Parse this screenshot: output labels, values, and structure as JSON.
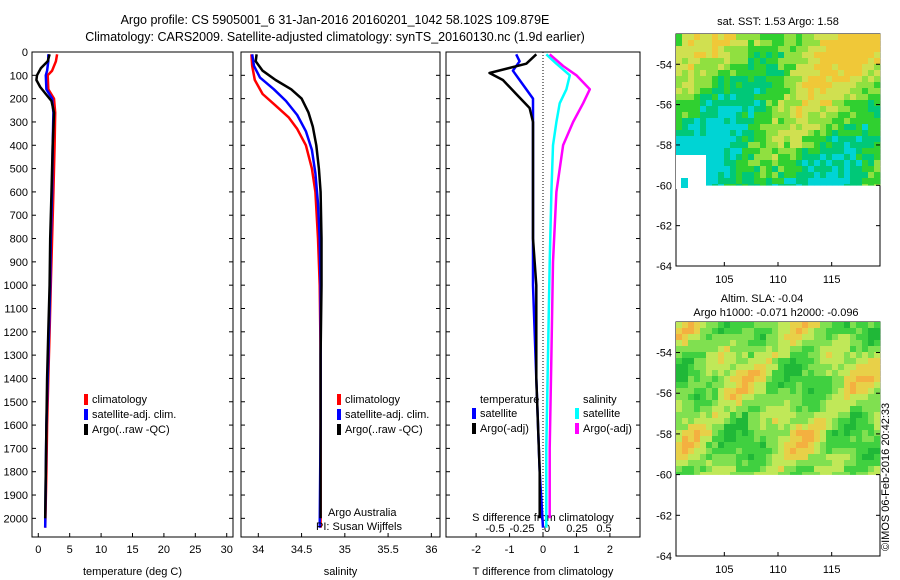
{
  "header": {
    "line1": "Argo profile: CS 5905001_6 31-Jan-2016 20160201_1042 58.102S 109.879E",
    "line2": "Climatology: CARS2009. Satellite-adjusted climatology: synTS_20160130.nc (1.9d earlier)"
  },
  "footer": {
    "credit1": "Argo Australia",
    "credit2": "PI: Susan Wijffels",
    "stamp": "©IMOS 06-Feb-2016 20:42:33"
  },
  "colors": {
    "climatology": "#ff0000",
    "satellite": "#0000ff",
    "argo": "#000000",
    "sal_satellite": "#00ffff",
    "sal_argo": "#ff00ff"
  },
  "chart_data": [
    {
      "type": "line",
      "panel": "temperature",
      "xlabel": "temperature (deg C)",
      "xlim": [
        -1,
        31
      ],
      "xticks": [
        0,
        5,
        10,
        15,
        20,
        25,
        30
      ],
      "ylim": [
        2080,
        0
      ],
      "yticks": [
        0,
        100,
        200,
        300,
        400,
        500,
        600,
        700,
        800,
        900,
        1000,
        1100,
        1200,
        1300,
        1400,
        1500,
        1600,
        1700,
        1800,
        1900,
        2000
      ],
      "legend": [
        "climatology",
        "satellite-adj. clim.",
        "Argo(..raw -QC)"
      ],
      "legend_position": "lower-center",
      "series": [
        {
          "name": "climatology",
          "color": "#ff0000",
          "points": [
            [
              3.0,
              10
            ],
            [
              2.8,
              40
            ],
            [
              2.2,
              80
            ],
            [
              1.5,
              100
            ],
            [
              1.6,
              160
            ],
            [
              2.5,
              200
            ],
            [
              2.7,
              260
            ],
            [
              2.6,
              400
            ],
            [
              2.4,
              600
            ],
            [
              2.2,
              800
            ],
            [
              2.0,
              1000
            ],
            [
              1.8,
              1200
            ],
            [
              1.6,
              1400
            ],
            [
              1.4,
              1600
            ],
            [
              1.3,
              1800
            ],
            [
              1.1,
              2040
            ]
          ]
        },
        {
          "name": "satellite-adj. clim.",
          "color": "#0000ff",
          "points": [
            [
              1.6,
              10
            ],
            [
              1.6,
              40
            ],
            [
              1.4,
              80
            ],
            [
              1.2,
              100
            ],
            [
              1.3,
              160
            ],
            [
              2.2,
              200
            ],
            [
              2.4,
              260
            ],
            [
              2.3,
              400
            ],
            [
              2.2,
              600
            ],
            [
              2.0,
              800
            ],
            [
              1.9,
              1000
            ],
            [
              1.7,
              1200
            ],
            [
              1.5,
              1400
            ],
            [
              1.3,
              1600
            ],
            [
              1.2,
              1800
            ],
            [
              1.1,
              2040
            ]
          ]
        },
        {
          "name": "Argo(..raw -QC)",
          "color": "#000000",
          "points": [
            [
              1.8,
              10
            ],
            [
              1.5,
              40
            ],
            [
              0.4,
              70
            ],
            [
              -0.2,
              100
            ],
            [
              -0.3,
              120
            ],
            [
              0.3,
              150
            ],
            [
              1.2,
              180
            ],
            [
              2.1,
              210
            ],
            [
              2.5,
              260
            ],
            [
              2.3,
              400
            ],
            [
              2.1,
              600
            ],
            [
              1.9,
              800
            ],
            [
              1.8,
              1000
            ],
            [
              1.6,
              1200
            ],
            [
              1.4,
              1400
            ],
            [
              1.3,
              1600
            ],
            [
              1.2,
              1800
            ],
            [
              1.1,
              2000
            ]
          ]
        }
      ]
    },
    {
      "type": "line",
      "panel": "salinity",
      "xlabel": "salinity",
      "xlim": [
        33.8,
        36.1
      ],
      "xticks": [
        34,
        34.5,
        35,
        35.5,
        36
      ],
      "ylim": [
        2080,
        0
      ],
      "legend": [
        "climatology",
        "satellite-adj. clim.",
        "Argo(..raw -QC)"
      ],
      "legend_position": "lower-right",
      "series": [
        {
          "name": "climatology",
          "color": "#ff0000",
          "points": [
            [
              33.92,
              10
            ],
            [
              33.93,
              60
            ],
            [
              33.96,
              120
            ],
            [
              34.05,
              180
            ],
            [
              34.2,
              230
            ],
            [
              34.35,
              280
            ],
            [
              34.45,
              330
            ],
            [
              34.55,
              400
            ],
            [
              34.62,
              500
            ],
            [
              34.66,
              600
            ],
            [
              34.69,
              800
            ],
            [
              34.71,
              1000
            ],
            [
              34.72,
              1300
            ],
            [
              34.72,
              1600
            ],
            [
              34.72,
              2040
            ]
          ]
        },
        {
          "name": "satellite-adj. clim.",
          "color": "#0000ff",
          "points": [
            [
              33.93,
              10
            ],
            [
              33.95,
              60
            ],
            [
              34.02,
              110
            ],
            [
              34.18,
              160
            ],
            [
              34.32,
              210
            ],
            [
              34.45,
              270
            ],
            [
              34.55,
              340
            ],
            [
              34.62,
              420
            ],
            [
              34.66,
              520
            ],
            [
              34.69,
              650
            ],
            [
              34.71,
              800
            ],
            [
              34.72,
              1000
            ],
            [
              34.72,
              1300
            ],
            [
              34.72,
              1600
            ],
            [
              34.71,
              2040
            ]
          ]
        },
        {
          "name": "Argo(..raw -QC)",
          "color": "#000000",
          "points": [
            [
              33.98,
              10
            ],
            [
              33.97,
              40
            ],
            [
              34.05,
              80
            ],
            [
              34.2,
              120
            ],
            [
              34.38,
              160
            ],
            [
              34.5,
              200
            ],
            [
              34.58,
              260
            ],
            [
              34.63,
              320
            ],
            [
              34.67,
              400
            ],
            [
              34.7,
              500
            ],
            [
              34.72,
              600
            ],
            [
              34.73,
              800
            ],
            [
              34.73,
              1000
            ],
            [
              34.72,
              1300
            ],
            [
              34.72,
              1600
            ],
            [
              34.72,
              2000
            ]
          ]
        }
      ]
    },
    {
      "type": "line",
      "panel": "differences",
      "xlabel": "T difference from climatology",
      "xlim": [
        -2.9,
        2.9
      ],
      "xticks": [
        -2,
        -1,
        0,
        1,
        2
      ],
      "xlabel_top": "S difference from climatology",
      "xticks_top": [
        "-0.5",
        "-0.25",
        "0",
        "0.25",
        "0.5"
      ],
      "ylim": [
        2080,
        0
      ],
      "legend_titles": [
        "temperature",
        "salinity"
      ],
      "legend": [
        "satellite",
        "Argo(-adj)",
        "satellite",
        "Argo(-adj)"
      ],
      "legend_position": "lower-center",
      "series": [
        {
          "name": "satellite",
          "group": "temperature",
          "color": "#0000ff",
          "points": [
            [
              -0.8,
              10
            ],
            [
              -0.7,
              40
            ],
            [
              -0.9,
              80
            ],
            [
              -0.7,
              120
            ],
            [
              -0.3,
              200
            ],
            [
              -0.3,
              300
            ],
            [
              -0.3,
              500
            ],
            [
              -0.3,
              700
            ],
            [
              -0.3,
              1000
            ],
            [
              -0.2,
              1400
            ],
            [
              -0.1,
              1800
            ],
            [
              0.0,
              2040
            ]
          ]
        },
        {
          "name": "Argo(-adj)",
          "group": "temperature",
          "color": "#000000",
          "points": [
            [
              -0.2,
              10
            ],
            [
              -0.5,
              50
            ],
            [
              -1.6,
              90
            ],
            [
              -1.2,
              120
            ],
            [
              -0.8,
              180
            ],
            [
              -0.4,
              240
            ],
            [
              -0.3,
              300
            ],
            [
              -0.3,
              500
            ],
            [
              -0.3,
              800
            ],
            [
              -0.2,
              1000
            ],
            [
              -0.2,
              1400
            ],
            [
              -0.1,
              1800
            ],
            [
              -0.1,
              2000
            ]
          ]
        },
        {
          "name": "satellite",
          "group": "salinity",
          "color": "#00ffff",
          "points": [
            [
              0.1,
              10
            ],
            [
              0.4,
              50
            ],
            [
              0.8,
              100
            ],
            [
              0.7,
              160
            ],
            [
              0.5,
              220
            ],
            [
              0.4,
              300
            ],
            [
              0.3,
              400
            ],
            [
              0.25,
              600
            ],
            [
              0.2,
              900
            ],
            [
              0.15,
              1300
            ],
            [
              0.1,
              1700
            ],
            [
              0.1,
              2040
            ]
          ]
        },
        {
          "name": "Argo(-adj)",
          "group": "salinity",
          "color": "#ff00ff",
          "points": [
            [
              0.2,
              10
            ],
            [
              0.6,
              60
            ],
            [
              1.0,
              100
            ],
            [
              1.4,
              160
            ],
            [
              1.2,
              220
            ],
            [
              0.9,
              300
            ],
            [
              0.6,
              400
            ],
            [
              0.4,
              600
            ],
            [
              0.3,
              900
            ],
            [
              0.25,
              1300
            ],
            [
              0.2,
              1700
            ],
            [
              0.2,
              2000
            ]
          ]
        }
      ]
    },
    {
      "type": "heatmap",
      "panel": "sst_map",
      "title": "sat. SST: 1.53  Argo: 1.58",
      "xticks": [
        105,
        110,
        115
      ],
      "xlim": [
        100.5,
        119.5
      ],
      "yticks": [
        -54,
        -56,
        -58,
        -60,
        -62,
        -64
      ],
      "ylim": [
        -64,
        -52.5
      ],
      "field_extent": {
        "lon": [
          100.5,
          119.5
        ],
        "lat": [
          -60,
          -52.5
        ]
      },
      "palette": [
        "#00d4d4",
        "#00c878",
        "#30d030",
        "#90e040",
        "#d0e050",
        "#f0c838"
      ]
    },
    {
      "type": "heatmap",
      "panel": "sla_map",
      "title": "Altim. SLA: -0.04",
      "subtitle": "Argo h1000: -0.071  h2000: -0.096",
      "xticks": [
        105,
        110,
        115
      ],
      "xlim": [
        100.5,
        119.5
      ],
      "yticks": [
        -54,
        -56,
        -58,
        -60,
        -62,
        -64
      ],
      "ylim": [
        -64,
        -52.5
      ],
      "field_extent": {
        "lon": [
          100.5,
          119.5
        ],
        "lat": [
          -60,
          -52.5
        ]
      },
      "palette": [
        "#20b838",
        "#40d040",
        "#80e050",
        "#c0e858",
        "#e8d048",
        "#f4b040"
      ]
    }
  ]
}
